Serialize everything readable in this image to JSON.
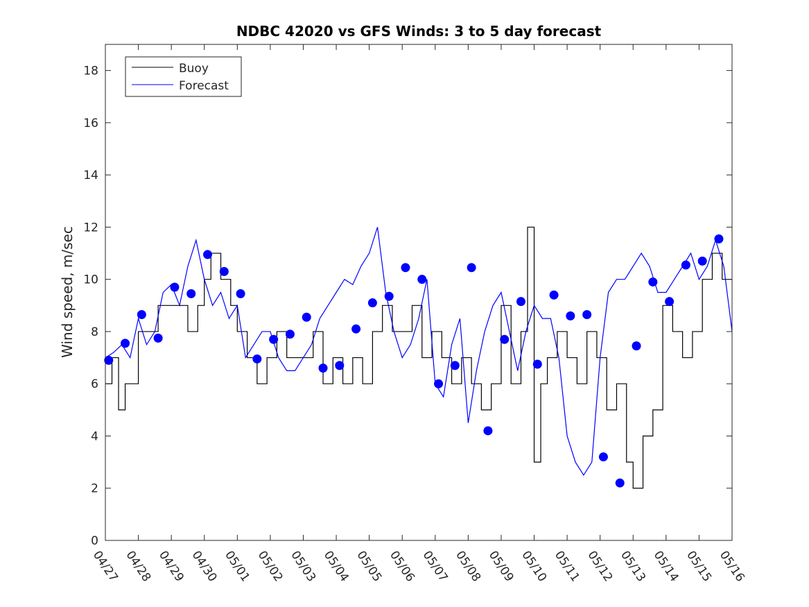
{
  "chart_data": {
    "type": "line",
    "title": "NDBC 42020 vs GFS Winds: 3 to 5 day forecast",
    "xlabel": "",
    "ylabel": "Wind speed, m/sec",
    "xlim": [
      "04/27",
      "05/16"
    ],
    "ylim": [
      0,
      19
    ],
    "x_tick_labels": [
      "04/27",
      "04/28",
      "04/29",
      "04/30",
      "05/01",
      "05/02",
      "05/03",
      "05/04",
      "05/05",
      "05/06",
      "05/07",
      "05/08",
      "05/09",
      "05/10",
      "05/11",
      "05/12",
      "05/13",
      "05/14",
      "05/15",
      "05/16"
    ],
    "y_ticks": [
      0,
      2,
      4,
      6,
      8,
      10,
      12,
      14,
      16,
      18
    ],
    "grid": false,
    "legend": {
      "position": "top-left",
      "entries": [
        "Buoy",
        "Forecast"
      ]
    },
    "series": [
      {
        "name": "Buoy",
        "color": "#000000",
        "style": "step",
        "x_day": [
          0.0,
          0.2,
          0.4,
          0.6,
          0.8,
          1.0,
          1.3,
          1.6,
          1.9,
          2.2,
          2.5,
          2.8,
          3.0,
          3.2,
          3.5,
          3.8,
          4.0,
          4.3,
          4.6,
          4.9,
          5.2,
          5.5,
          5.8,
          6.0,
          6.3,
          6.6,
          6.9,
          7.2,
          7.5,
          7.8,
          8.1,
          8.4,
          8.7,
          9.0,
          9.3,
          9.6,
          9.9,
          10.2,
          10.5,
          10.8,
          11.1,
          11.4,
          11.7,
          12.0,
          12.3,
          12.6,
          12.8,
          13.0,
          13.2,
          13.4,
          13.7,
          14.0,
          14.3,
          14.6,
          14.9,
          15.2,
          15.5,
          15.8,
          16.0,
          16.3,
          16.6,
          16.9,
          17.2,
          17.5,
          17.8,
          18.1,
          18.4,
          18.7,
          19.0
        ],
        "y": [
          6,
          7,
          5,
          6,
          6,
          8,
          8,
          9,
          9,
          9,
          8,
          9,
          10,
          11,
          10,
          9,
          8,
          7,
          6,
          7,
          8,
          7,
          7,
          7,
          8,
          6,
          7,
          6,
          7,
          6,
          8,
          9,
          8,
          8,
          9,
          7,
          8,
          7,
          6,
          7,
          6,
          5,
          6,
          9,
          6,
          8,
          12,
          3,
          6,
          7,
          8,
          7,
          6,
          8,
          7,
          5,
          6,
          3,
          2,
          4,
          5,
          9,
          8,
          7,
          8,
          10,
          11,
          10,
          10
        ]
      },
      {
        "name": "Forecast",
        "color": "#0000ff",
        "style": "line",
        "x_day": [
          0.0,
          0.25,
          0.5,
          0.75,
          1.0,
          1.25,
          1.5,
          1.75,
          2.0,
          2.25,
          2.5,
          2.75,
          3.0,
          3.25,
          3.5,
          3.75,
          4.0,
          4.25,
          4.5,
          4.75,
          5.0,
          5.25,
          5.5,
          5.75,
          6.0,
          6.25,
          6.5,
          6.75,
          7.0,
          7.25,
          7.5,
          7.75,
          8.0,
          8.25,
          8.5,
          8.75,
          9.0,
          9.25,
          9.5,
          9.75,
          10.0,
          10.25,
          10.5,
          10.75,
          11.0,
          11.25,
          11.5,
          11.75,
          12.0,
          12.25,
          12.5,
          12.75,
          13.0,
          13.25,
          13.5,
          13.75,
          14.0,
          14.25,
          14.5,
          14.75,
          15.0,
          15.25,
          15.5,
          15.75,
          16.0,
          16.25,
          16.5,
          16.75,
          17.0,
          17.25,
          17.5,
          17.75,
          18.0,
          18.25,
          18.5,
          18.75,
          19.0
        ],
        "y": [
          7.0,
          7.2,
          7.5,
          7.0,
          8.5,
          7.5,
          8.0,
          9.5,
          9.8,
          9.0,
          10.5,
          11.5,
          10.0,
          9.0,
          9.5,
          8.5,
          9.0,
          7.0,
          7.5,
          8.0,
          8.0,
          7.0,
          6.5,
          6.5,
          7.0,
          7.5,
          8.5,
          9.0,
          9.5,
          10.0,
          9.8,
          10.5,
          11.0,
          12.0,
          9.5,
          8.0,
          7.0,
          7.5,
          8.5,
          10.0,
          6.0,
          5.5,
          7.5,
          8.5,
          4.5,
          6.5,
          8.0,
          9.0,
          9.5,
          8.0,
          6.5,
          8.0,
          9.0,
          8.5,
          8.5,
          7.0,
          4.0,
          3.0,
          2.5,
          3.0,
          7.0,
          9.5,
          10.0,
          10.0,
          10.5,
          11.0,
          10.5,
          9.5,
          9.5,
          10.0,
          10.5,
          11.0,
          10.0,
          10.5,
          11.5,
          10.5,
          8.0
        ]
      }
    ],
    "markers": {
      "name": "Forecast",
      "color": "#0000ff",
      "x_day": [
        0.1,
        0.6,
        1.1,
        1.6,
        2.1,
        2.6,
        3.1,
        3.6,
        4.1,
        4.6,
        5.1,
        5.6,
        6.1,
        6.6,
        7.1,
        7.6,
        8.1,
        8.6,
        9.1,
        9.6,
        10.1,
        10.6,
        11.1,
        11.6,
        12.1,
        12.6,
        13.1,
        13.6,
        14.1,
        14.6,
        15.1,
        15.6,
        16.1,
        16.6,
        17.1,
        17.6,
        18.1,
        18.6
      ],
      "y": [
        6.9,
        7.55,
        8.65,
        7.75,
        9.7,
        9.45,
        10.95,
        10.3,
        9.45,
        6.95,
        7.7,
        7.9,
        8.55,
        6.6,
        6.7,
        8.1,
        9.1,
        9.35,
        10.45,
        10.0,
        6.0,
        6.7,
        10.45,
        4.2,
        7.7,
        9.15,
        6.75,
        9.4,
        8.6,
        8.65,
        3.2,
        2.2,
        7.45,
        9.9,
        9.15,
        10.55,
        10.7,
        11.55
      ]
    }
  }
}
